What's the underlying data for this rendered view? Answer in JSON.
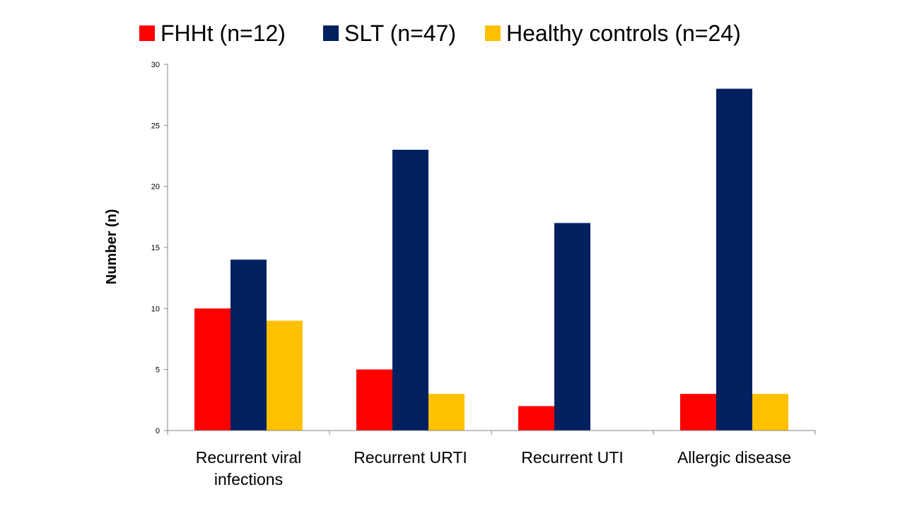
{
  "chart_data": {
    "type": "bar",
    "categories": [
      [
        "Recurrent viral",
        "infections"
      ],
      [
        "Recurrent URTI"
      ],
      [
        "Recurrent UTI"
      ],
      [
        "Allergic disease"
      ]
    ],
    "series": [
      {
        "name": "FHHt (n=12)",
        "color": "#ff0000",
        "values": [
          10,
          5,
          2,
          3
        ]
      },
      {
        "name": "SLT (n=47)",
        "color": "#002060",
        "values": [
          14,
          23,
          17,
          28
        ]
      },
      {
        "name": "Healthy controls (n=24)",
        "color": "#ffc000",
        "values": [
          9,
          3,
          0,
          3
        ]
      }
    ],
    "ylabel": "Number (n)",
    "xlabel": "",
    "title": "",
    "ylim": [
      0,
      30
    ],
    "yticks": [
      0,
      5,
      10,
      15,
      20,
      25,
      30
    ],
    "legend_position": "top",
    "grid": false
  }
}
